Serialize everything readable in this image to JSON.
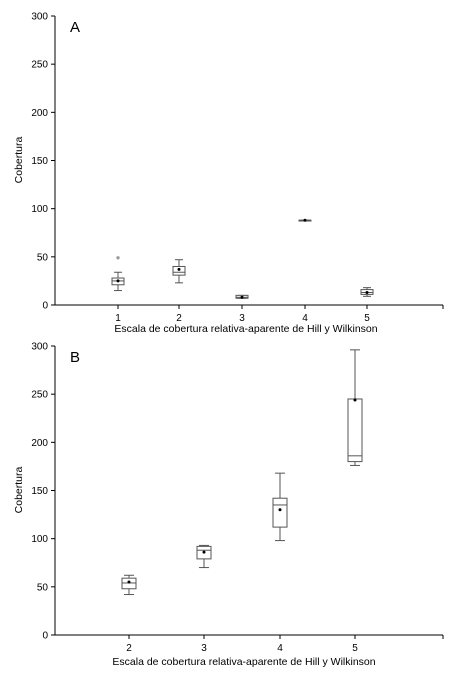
{
  "chart_data": [
    {
      "type": "box",
      "panel_label": "A",
      "xlabel": "Escala de cobertura relativa-aparente de Hill y Wilkinson",
      "ylabel": "Cobertura",
      "ylim": [
        0,
        300
      ],
      "yticks": [
        0,
        50,
        100,
        150,
        200,
        250,
        300
      ],
      "grid": false,
      "categories": [
        "1",
        "2",
        "3",
        "4",
        "5"
      ],
      "boxes": [
        {
          "category": "1",
          "whisker_low": 15,
          "q1": 21,
          "median": 25,
          "q3": 28,
          "whisker_high": 34,
          "mean": 25,
          "outliers": [
            49
          ]
        },
        {
          "category": "2",
          "whisker_low": 23,
          "q1": 31,
          "median": 34,
          "q3": 40,
          "whisker_high": 47,
          "mean": 37,
          "outliers": []
        },
        {
          "category": "3",
          "whisker_low": 7,
          "q1": 7,
          "median": 8,
          "q3": 10,
          "whisker_high": 10,
          "mean": 8,
          "outliers": []
        },
        {
          "category": "4",
          "whisker_low": 88,
          "q1": 88,
          "median": 88,
          "q3": 88,
          "whisker_high": 88,
          "mean": 88,
          "outliers": []
        },
        {
          "category": "5",
          "whisker_low": 9,
          "q1": 11,
          "median": 13,
          "q3": 16,
          "whisker_high": 18,
          "mean": 13,
          "outliers": []
        }
      ]
    },
    {
      "type": "box",
      "panel_label": "B",
      "xlabel": "Escala de cobertura relativa-aparente de Hill y Wilkinson",
      "ylabel": "Cobertura",
      "ylim": [
        0,
        300
      ],
      "yticks": [
        0,
        50,
        100,
        150,
        200,
        250,
        300
      ],
      "grid": false,
      "categories": [
        "2",
        "3",
        "4",
        "5"
      ],
      "boxes": [
        {
          "category": "2",
          "whisker_low": 42,
          "q1": 48,
          "median": 54,
          "q3": 59,
          "whisker_high": 62,
          "mean": 55,
          "outliers": []
        },
        {
          "category": "3",
          "whisker_low": 70,
          "q1": 79,
          "median": 88,
          "q3": 92,
          "whisker_high": 93,
          "mean": 86,
          "outliers": []
        },
        {
          "category": "4",
          "whisker_low": 98,
          "q1": 112,
          "median": 135,
          "q3": 142,
          "whisker_high": 168,
          "mean": 130,
          "outliers": []
        },
        {
          "category": "5",
          "whisker_low": 176,
          "q1": 180,
          "median": 186,
          "q3": 245,
          "whisker_high": 296,
          "mean": 244,
          "outliers": []
        }
      ]
    }
  ]
}
